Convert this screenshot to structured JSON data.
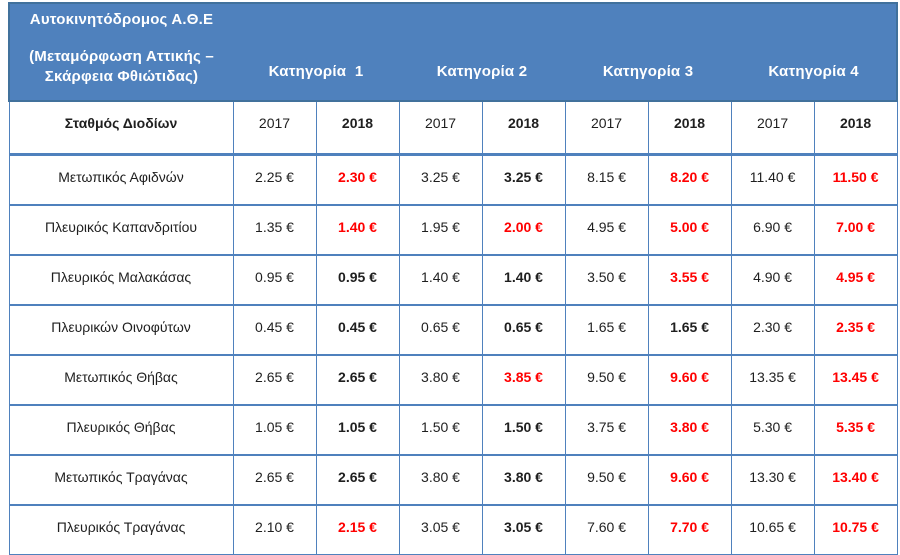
{
  "colors": {
    "header_blue": "#4f81bd",
    "header_border": "#41719c",
    "grid_blue": "#4f81bd",
    "changed_red": "#ff0000",
    "text": "#1f1f1f",
    "header_text": "#ffffff"
  },
  "table": {
    "title_lines": [
      "Αυτοκινητόδρομος Α.Θ.Ε",
      "(Μεταμόρφωση Αττικής –",
      "Σκάρφεια Φθιώτιδας)"
    ],
    "categories": [
      "Κατηγορία  1",
      "Κατηγορία 2",
      "Κατηγορία 3",
      "Κατηγορία 4"
    ],
    "station_header": "Σταθμός Διοδίων",
    "year_cells": [
      "2017",
      "2018",
      "2017",
      "2018",
      "2017",
      "2018",
      "2017",
      "2018"
    ],
    "rows": [
      {
        "station": "Μετωπικός Αφιδνών",
        "values": [
          "2.25 €",
          "2.30 €",
          "3.25 €",
          "3.25 €",
          "8.15 €",
          "8.20 €",
          "11.40 €",
          "11.50 €"
        ],
        "changed": [
          false,
          true,
          false,
          false,
          false,
          true,
          false,
          true
        ]
      },
      {
        "station": "Πλευρικός Καπανδριτίου",
        "values": [
          "1.35 €",
          "1.40 €",
          "1.95 €",
          "2.00 €",
          "4.95 €",
          "5.00 €",
          "6.90 €",
          "7.00 €"
        ],
        "changed": [
          false,
          true,
          false,
          true,
          false,
          true,
          false,
          true
        ]
      },
      {
        "station": "Πλευρικός Μαλακάσας",
        "values": [
          "0.95 €",
          "0.95 €",
          "1.40 €",
          "1.40 €",
          "3.50 €",
          "3.55 €",
          "4.90 €",
          "4.95 €"
        ],
        "changed": [
          false,
          false,
          false,
          false,
          false,
          true,
          false,
          true
        ]
      },
      {
        "station": "Πλευρικών Οινοφύτων",
        "values": [
          "0.45 €",
          "0.45 €",
          "0.65 €",
          "0.65 €",
          "1.65 €",
          "1.65 €",
          "2.30 €",
          "2.35 €"
        ],
        "changed": [
          false,
          false,
          false,
          false,
          false,
          false,
          false,
          true
        ]
      },
      {
        "station": "Μετωπικός Θήβας",
        "values": [
          "2.65 €",
          "2.65 €",
          "3.80 €",
          "3.85 €",
          "9.50 €",
          "9.60 €",
          "13.35 €",
          "13.45 €"
        ],
        "changed": [
          false,
          false,
          false,
          true,
          false,
          true,
          false,
          true
        ]
      },
      {
        "station": "Πλευρικός Θήβας",
        "values": [
          "1.05 €",
          "1.05 €",
          "1.50 €",
          "1.50 €",
          "3.75 €",
          "3.80 €",
          "5.30 €",
          "5.35 €"
        ],
        "changed": [
          false,
          false,
          false,
          false,
          false,
          true,
          false,
          true
        ]
      },
      {
        "station": "Μετωπικός Τραγάνας",
        "values": [
          "2.65 €",
          "2.65 €",
          "3.80 €",
          "3.80 €",
          "9.50 €",
          "9.60 €",
          "13.30 €",
          "13.40 €"
        ],
        "changed": [
          false,
          false,
          false,
          false,
          false,
          true,
          false,
          true
        ]
      },
      {
        "station": "Πλευρικός Τραγάνας",
        "values": [
          "2.10 €",
          "2.15 €",
          "3.05 €",
          "3.05 €",
          "7.60 €",
          "7.70 €",
          "10.65 €",
          "10.75 €"
        ],
        "changed": [
          false,
          true,
          false,
          false,
          false,
          true,
          false,
          true
        ]
      }
    ]
  }
}
